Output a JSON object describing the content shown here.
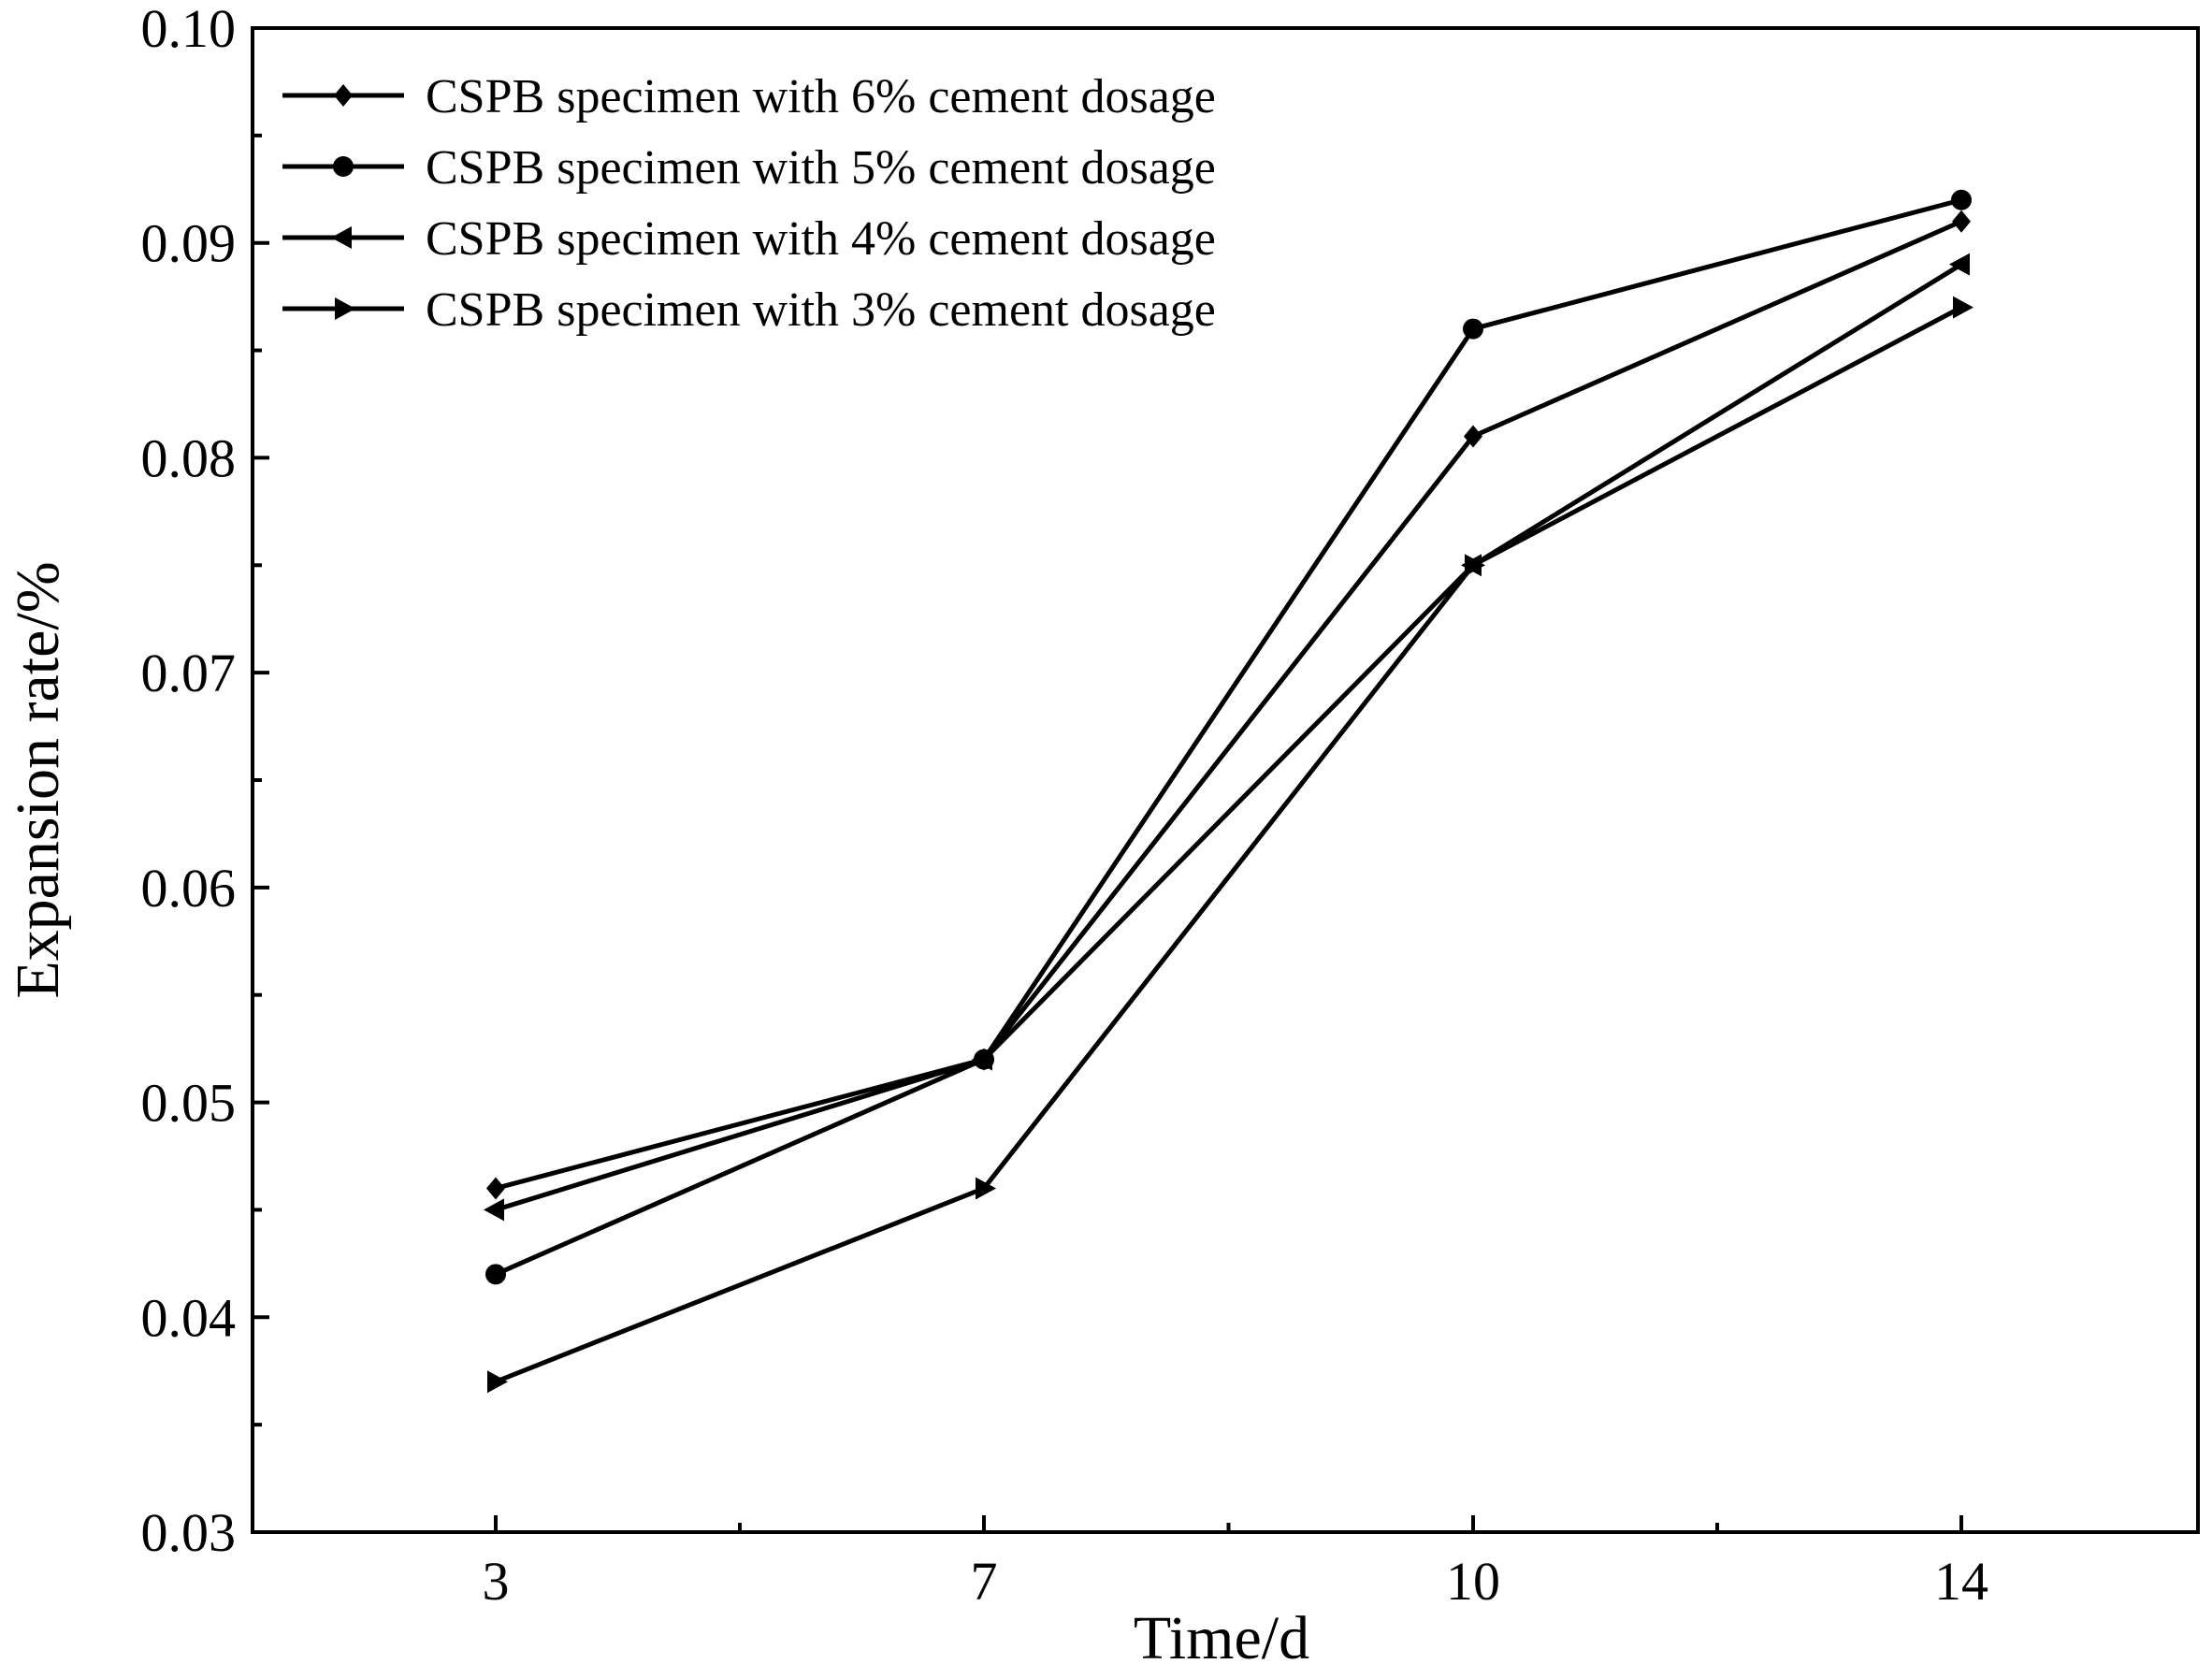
{
  "chart_data": {
    "type": "line",
    "title": "",
    "xlabel": "Time/d",
    "ylabel": "Expansion rate/%",
    "categories": [
      "3",
      "7",
      "10",
      "14"
    ],
    "ylim": [
      0.03,
      0.1
    ],
    "yticks": [
      "0.03",
      "0.04",
      "0.05",
      "0.06",
      "0.07",
      "0.08",
      "0.09",
      "0.10"
    ],
    "grid": false,
    "legend_position": "top-left",
    "series": [
      {
        "name": "CSPB specimen with 6% cement dosage",
        "marker": "diamond",
        "values": [
          0.046,
          0.052,
          0.081,
          0.091
        ]
      },
      {
        "name": "CSPB specimen with 5% cement dosage",
        "marker": "circle",
        "values": [
          0.042,
          0.052,
          0.086,
          0.092
        ]
      },
      {
        "name": "CSPB specimen with 4% cement dosage",
        "marker": "triangle-left",
        "values": [
          0.045,
          0.052,
          0.075,
          0.089
        ]
      },
      {
        "name": "CSPB specimen with 3% cement dosage",
        "marker": "triangle-right",
        "values": [
          0.037,
          0.046,
          0.075,
          0.087
        ]
      }
    ],
    "colors": {
      "line": "#000000",
      "background": "#ffffff"
    }
  }
}
